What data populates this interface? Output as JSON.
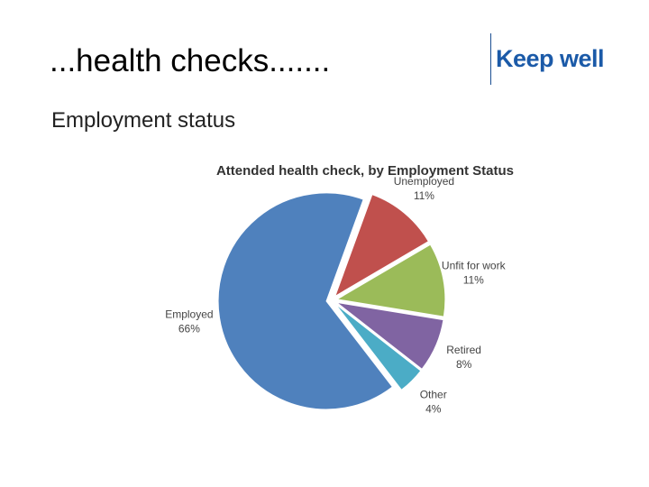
{
  "header": {
    "title": "...health checks.......",
    "logo": "Keep well"
  },
  "subtitle": "Employment status",
  "chart_data": {
    "type": "pie",
    "title": "Attended health check, by Employment Status",
    "categories": [
      "Unemployed",
      "Unfit for work",
      "Retired",
      "Other",
      "Employed"
    ],
    "values": [
      11,
      11,
      8,
      4,
      66
    ],
    "value_labels": [
      "11%",
      "11%",
      "8%",
      "4%",
      "66%"
    ],
    "colors": [
      "#c0504d",
      "#9bbb59",
      "#8064a2",
      "#4bacc6",
      "#4f81bd"
    ]
  }
}
